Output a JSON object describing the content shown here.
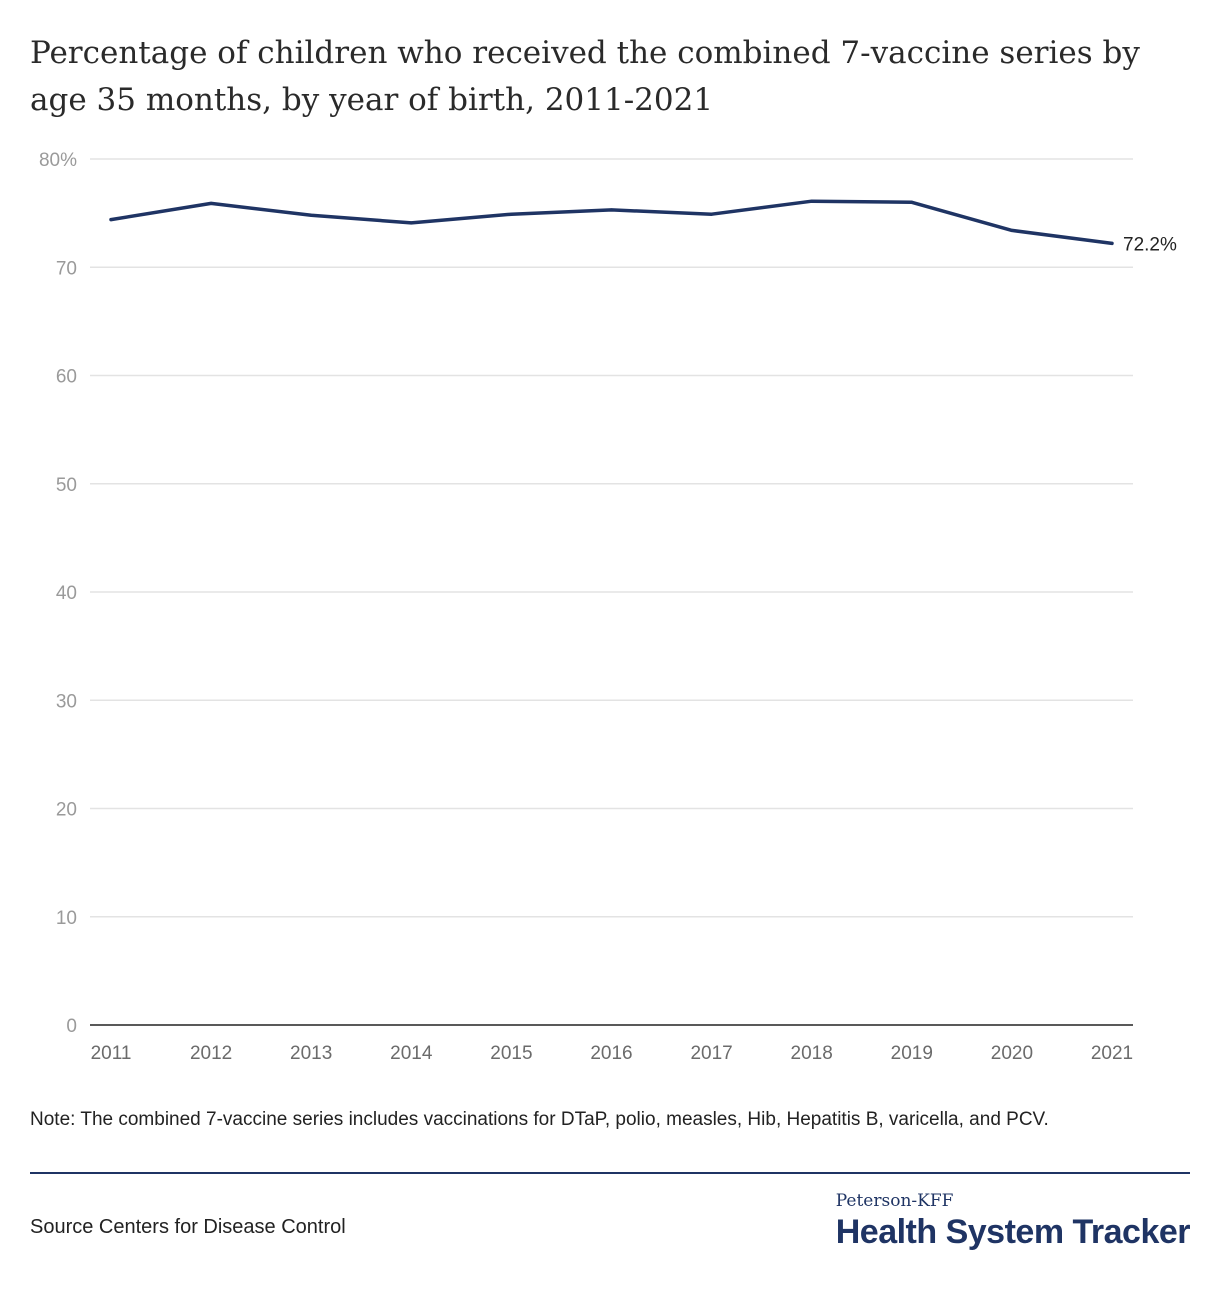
{
  "chart_data": {
    "type": "line",
    "title": "Percentage of children who received the combined 7-vaccine series by age 35 months, by year of birth, 2011-2021",
    "xlabel": "",
    "ylabel": "",
    "x": [
      "2011",
      "2012",
      "2013",
      "2014",
      "2015",
      "2016",
      "2017",
      "2018",
      "2019",
      "2020",
      "2021"
    ],
    "series": [
      {
        "values": [
          74.4,
          75.9,
          74.8,
          74.1,
          74.9,
          75.3,
          74.9,
          76.1,
          76.0,
          73.4,
          72.2
        ],
        "color": "#1f3464"
      }
    ],
    "ylim": [
      0,
      80
    ],
    "y_ticks": [
      0,
      10,
      20,
      30,
      40,
      50,
      60,
      70,
      80
    ],
    "y_tick_labels": [
      "0",
      "10",
      "20",
      "30",
      "40",
      "50",
      "60",
      "70",
      "80%"
    ],
    "end_label": "72.2%",
    "grid": true,
    "legend": "none"
  },
  "note": "Note: The combined 7-vaccine series includes vaccinations for DTaP, polio, measles, Hib, Hepatitis B, varicella, and PCV.",
  "source": "Source Centers for Disease Control",
  "brand": {
    "top": "Peterson-KFF",
    "main": "Health System Tracker",
    "color": "#1f3464"
  }
}
